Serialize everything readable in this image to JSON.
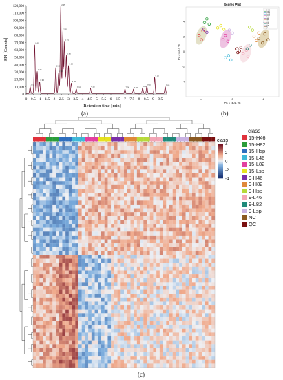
{
  "panel_labels": {
    "a": "(a)",
    "b": "(b)",
    "c": "(c)"
  },
  "class_colors": {
    "15-H46": "#e0323c",
    "15-H82": "#2a9d3a",
    "15-Hsp": "#2e6fbf",
    "15-L46": "#3fb8d8",
    "15-L82": "#e33fa0",
    "15-Lsp": "#e7e21f",
    "9-H46": "#7a2fa8",
    "9-H82": "#e0893a",
    "9-Hsp": "#b6d93a",
    "9-L46": "#f3a6b6",
    "9-L82": "#1f8a7a",
    "9-Lsp": "#c9b3e3",
    "NC": "#8a5a22",
    "QC": "#7a0f0f"
  },
  "legend": {
    "title": "class",
    "items": [
      "15-H46",
      "15-H82",
      "15-Hsp",
      "15-L46",
      "15-L82",
      "15-Lsp",
      "9-H46",
      "9-H82",
      "9-Hsp",
      "9-L46",
      "9-L82",
      "9-Lsp",
      "NC",
      "QC"
    ]
  },
  "colorbar": {
    "ticks": [
      "4",
      "2",
      "0",
      "-2",
      "-4"
    ],
    "min": -4,
    "max": 4
  },
  "heatmap": {
    "rows": 58,
    "cols": 56,
    "class_label": "class"
  },
  "chart_data": [
    {
      "type": "line",
      "title": "",
      "xlabel": "Retention time [min]",
      "ylabel": "BPI [Counts]",
      "xlim": [
        0,
        10
      ],
      "ylim": [
        0,
        120000
      ],
      "x_ticks": [
        "0",
        "0.5",
        "1",
        "1.5",
        "2",
        "2.5",
        "3",
        "3.5",
        "4",
        "4.5",
        "5",
        "5.5",
        "6",
        "6.5",
        "7",
        "7.5",
        "8",
        "8.5",
        "9",
        "9.5"
      ],
      "y_ticks": [
        "0",
        "10,000",
        "20,000",
        "30,000",
        "40,000",
        "50,000",
        "60,000",
        "70,000",
        "80,000",
        "90,000",
        "100,000",
        "110,000",
        "120,000"
      ],
      "peaks": [
        {
          "x": 0.28,
          "y": 9000
        },
        {
          "x": 0.6,
          "y": 66000
        },
        {
          "x": 0.78,
          "y": 30000
        },
        {
          "x": 0.95,
          "y": 16000
        },
        {
          "x": 2.1,
          "y": 35000
        },
        {
          "x": 2.3,
          "y": 28000
        },
        {
          "x": 2.45,
          "y": 118000
        },
        {
          "x": 2.6,
          "y": 85000
        },
        {
          "x": 2.72,
          "y": 70000
        },
        {
          "x": 2.85,
          "y": 52000
        },
        {
          "x": 3.0,
          "y": 38000
        },
        {
          "x": 3.2,
          "y": 14000
        },
        {
          "x": 3.55,
          "y": 6000
        },
        {
          "x": 4.55,
          "y": 7000
        },
        {
          "x": 7.0,
          "y": 6000
        },
        {
          "x": 7.6,
          "y": 5500
        },
        {
          "x": 8.25,
          "y": 7500
        },
        {
          "x": 8.55,
          "y": 10000
        },
        {
          "x": 9.1,
          "y": 22000
        },
        {
          "x": 9.85,
          "y": 9000
        }
      ]
    },
    {
      "type": "scatter",
      "title": "Scores Plot",
      "xlabel": "PC 1 (40.1 %)",
      "ylabel": "PC 2 (19.9 %)",
      "xlim": [
        -6,
        6
      ],
      "ylim": [
        -6,
        6
      ],
      "groups": [
        {
          "class": "QC",
          "points": [
            [
              0.6,
              0.4
            ],
            [
              0.9,
              0.1
            ],
            [
              1.1,
              0.6
            ],
            [
              0.7,
              -0.1
            ]
          ]
        },
        {
          "class": "NC",
          "points": [
            [
              3.4,
              1.8
            ],
            [
              3.9,
              1.2
            ],
            [
              4.2,
              2.4
            ],
            [
              4.6,
              1.6
            ]
          ]
        },
        {
          "class": "15-H46",
          "points": [
            [
              -4.3,
              2.2
            ],
            [
              -4.0,
              1.6
            ],
            [
              -3.8,
              2.8
            ]
          ]
        },
        {
          "class": "15-H82",
          "points": [
            [
              -3.6,
              3.9
            ],
            [
              -3.3,
              4.4
            ],
            [
              -3.0,
              3.7
            ]
          ]
        },
        {
          "class": "15-Hsp",
          "points": [
            [
              4.2,
              3.9
            ],
            [
              4.5,
              4.3
            ],
            [
              4.8,
              3.8
            ]
          ]
        },
        {
          "class": "15-L46",
          "points": [
            [
              -0.9,
              -0.8
            ],
            [
              -0.5,
              -0.5
            ],
            [
              -0.2,
              -1.1
            ]
          ]
        },
        {
          "class": "15-L82",
          "points": [
            [
              -1.2,
              1.6
            ],
            [
              -0.9,
              2.2
            ],
            [
              -0.6,
              1.4
            ]
          ]
        },
        {
          "class": "15-Lsp",
          "points": [
            [
              -1.9,
              3.2
            ],
            [
              -1.5,
              3.5
            ],
            [
              -1.1,
              3.0
            ]
          ]
        },
        {
          "class": "9-H46",
          "points": [
            [
              -3.7,
              3.0
            ],
            [
              -3.3,
              2.6
            ]
          ]
        },
        {
          "class": "9-H82",
          "points": [
            [
              2.8,
              2.1
            ],
            [
              3.1,
              1.5
            ],
            [
              3.4,
              2.5
            ]
          ]
        },
        {
          "class": "9-Hsp",
          "points": [
            [
              2.2,
              3.3
            ],
            [
              2.6,
              2.9
            ]
          ]
        },
        {
          "class": "9-L46",
          "points": [
            [
              1.4,
              -0.2
            ],
            [
              1.8,
              0.2
            ],
            [
              2.0,
              -0.6
            ]
          ]
        },
        {
          "class": "9-L82",
          "points": [
            [
              1.9,
              0.4
            ],
            [
              2.3,
              0.9
            ]
          ]
        },
        {
          "class": "9-Lsp",
          "points": [
            [
              -0.4,
              2.9
            ],
            [
              0.0,
              2.5
            ]
          ]
        }
      ]
    },
    {
      "type": "heatmap",
      "title": "",
      "xlabel": "",
      "ylabel": "",
      "value_range": [
        -4,
        4
      ],
      "note": "Hierarchically clustered heatmap; 58 features x 56 samples annotated by class"
    }
  ]
}
